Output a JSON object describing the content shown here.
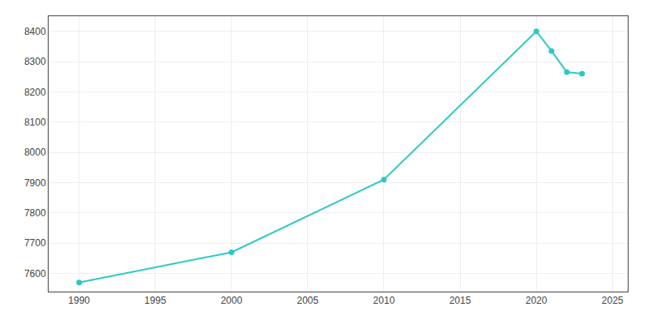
{
  "chart_data": {
    "type": "line",
    "x": [
      1990,
      2000,
      2010,
      2020,
      2021,
      2022,
      2023
    ],
    "values": [
      7570,
      7670,
      7910,
      8400,
      8335,
      8265,
      8260
    ],
    "color": "#2ec8c8",
    "marker": "circle",
    "xlim": [
      1988,
      2026
    ],
    "ylim": [
      7540,
      8450
    ],
    "xticks": [
      1990,
      1995,
      2000,
      2005,
      2010,
      2015,
      2020,
      2025
    ],
    "yticks": [
      7600,
      7700,
      7800,
      7900,
      8000,
      8100,
      8200,
      8300,
      8400
    ],
    "grid": true
  }
}
